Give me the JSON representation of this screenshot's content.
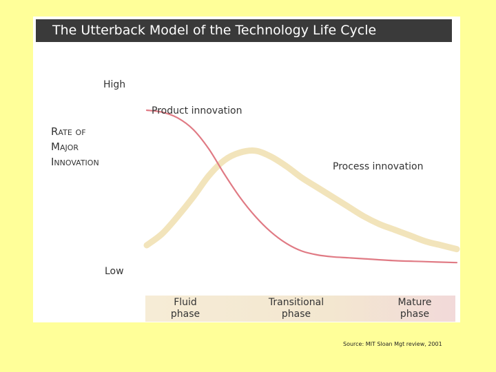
{
  "chart_data": {
    "type": "line",
    "title": "The Utterback Model of the Technology Life Cycle",
    "ylabel": "Rate of Major Innovation",
    "y_ticks": [
      "High",
      "Low"
    ],
    "x_phases": [
      "Fluid\nphase",
      "Transitional\nphase",
      "Mature\nphase"
    ],
    "xlim": [
      0,
      100
    ],
    "ylim": [
      0,
      100
    ],
    "series": [
      {
        "name": "Product innovation",
        "color": "#e07a84",
        "x": [
          0,
          5,
          10,
          15,
          20,
          25,
          30,
          35,
          40,
          45,
          50,
          55,
          60,
          65,
          70,
          80,
          90,
          100
        ],
        "y": [
          80,
          79,
          76,
          70,
          60,
          47,
          35,
          25,
          17,
          11,
          7,
          5,
          4,
          3.5,
          3,
          2,
          1.5,
          1
        ]
      },
      {
        "name": "Process innovation",
        "color": "#f2e4bb",
        "x": [
          0,
          5,
          10,
          15,
          20,
          25,
          30,
          35,
          40,
          45,
          50,
          55,
          60,
          65,
          70,
          75,
          80,
          85,
          90,
          95,
          100
        ],
        "y": [
          10,
          16,
          25,
          35,
          46,
          54,
          58,
          59,
          56,
          51,
          45,
          40,
          35,
          30,
          25,
          21,
          18,
          15,
          12,
          10,
          8
        ]
      }
    ]
  },
  "source": "Source: MIT Sloan Mgt review, 2001"
}
